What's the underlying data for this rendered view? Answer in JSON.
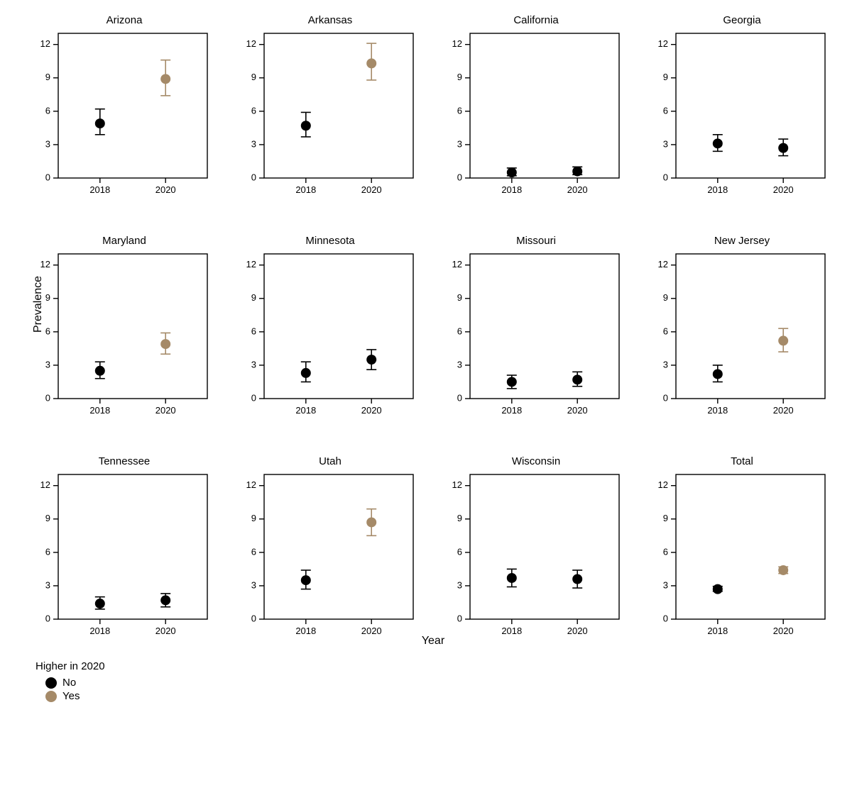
{
  "global": {
    "ylabel": "Prevalence",
    "xlabel": "Year",
    "ylim": [
      0,
      13
    ],
    "yticks": [
      0,
      3,
      6,
      9,
      12
    ],
    "xtick_labels": [
      "2018",
      "2020"
    ],
    "x_positions": [
      0.28,
      0.72
    ],
    "marker_radius": 7,
    "whisker_halfwidth": 7,
    "error_stroke_width": 1.6,
    "axis_stroke_width": 1.4,
    "tick_len": 7,
    "colors": {
      "no": "#000000",
      "yes": "#a58a68",
      "axis": "#000000",
      "bg": "#ffffff"
    },
    "title_fontsize": 15,
    "tick_fontsize": 13,
    "label_fontsize": 16
  },
  "legend": {
    "title": "Higher in 2020",
    "items": [
      {
        "label": "No",
        "color_key": "no"
      },
      {
        "label": "Yes",
        "color_key": "yes"
      }
    ]
  },
  "panels": [
    {
      "title": "Arizona",
      "points": [
        {
          "x": 0,
          "y": 4.9,
          "lo": 3.9,
          "hi": 6.2,
          "color_key": "no"
        },
        {
          "x": 1,
          "y": 8.9,
          "lo": 7.4,
          "hi": 10.6,
          "color_key": "yes"
        }
      ]
    },
    {
      "title": "Arkansas",
      "points": [
        {
          "x": 0,
          "y": 4.7,
          "lo": 3.7,
          "hi": 5.9,
          "color_key": "no"
        },
        {
          "x": 1,
          "y": 10.3,
          "lo": 8.8,
          "hi": 12.1,
          "color_key": "yes"
        }
      ]
    },
    {
      "title": "California",
      "points": [
        {
          "x": 0,
          "y": 0.5,
          "lo": 0.2,
          "hi": 0.9,
          "color_key": "no"
        },
        {
          "x": 1,
          "y": 0.6,
          "lo": 0.3,
          "hi": 1.0,
          "color_key": "no"
        }
      ]
    },
    {
      "title": "Georgia",
      "points": [
        {
          "x": 0,
          "y": 3.1,
          "lo": 2.4,
          "hi": 3.9,
          "color_key": "no"
        },
        {
          "x": 1,
          "y": 2.7,
          "lo": 2.0,
          "hi": 3.5,
          "color_key": "no"
        }
      ]
    },
    {
      "title": "Maryland",
      "points": [
        {
          "x": 0,
          "y": 2.5,
          "lo": 1.8,
          "hi": 3.3,
          "color_key": "no"
        },
        {
          "x": 1,
          "y": 4.9,
          "lo": 4.0,
          "hi": 5.9,
          "color_key": "yes"
        }
      ]
    },
    {
      "title": "Minnesota",
      "points": [
        {
          "x": 0,
          "y": 2.3,
          "lo": 1.5,
          "hi": 3.3,
          "color_key": "no"
        },
        {
          "x": 1,
          "y": 3.5,
          "lo": 2.6,
          "hi": 4.4,
          "color_key": "no"
        }
      ]
    },
    {
      "title": "Missouri",
      "points": [
        {
          "x": 0,
          "y": 1.5,
          "lo": 0.9,
          "hi": 2.1,
          "color_key": "no"
        },
        {
          "x": 1,
          "y": 1.7,
          "lo": 1.1,
          "hi": 2.4,
          "color_key": "no"
        }
      ]
    },
    {
      "title": "New Jersey",
      "points": [
        {
          "x": 0,
          "y": 2.2,
          "lo": 1.5,
          "hi": 3.0,
          "color_key": "no"
        },
        {
          "x": 1,
          "y": 5.2,
          "lo": 4.2,
          "hi": 6.3,
          "color_key": "yes"
        }
      ]
    },
    {
      "title": "Tennessee",
      "points": [
        {
          "x": 0,
          "y": 1.4,
          "lo": 0.9,
          "hi": 2.0,
          "color_key": "no"
        },
        {
          "x": 1,
          "y": 1.7,
          "lo": 1.1,
          "hi": 2.3,
          "color_key": "no"
        }
      ]
    },
    {
      "title": "Utah",
      "points": [
        {
          "x": 0,
          "y": 3.5,
          "lo": 2.7,
          "hi": 4.4,
          "color_key": "no"
        },
        {
          "x": 1,
          "y": 8.7,
          "lo": 7.5,
          "hi": 9.9,
          "color_key": "yes"
        }
      ]
    },
    {
      "title": "Wisconsin",
      "points": [
        {
          "x": 0,
          "y": 3.7,
          "lo": 2.9,
          "hi": 4.5,
          "color_key": "no"
        },
        {
          "x": 1,
          "y": 3.6,
          "lo": 2.8,
          "hi": 4.4,
          "color_key": "no"
        }
      ]
    },
    {
      "title": "Total",
      "points": [
        {
          "x": 0,
          "y": 2.7,
          "lo": 2.5,
          "hi": 2.95,
          "color_key": "no"
        },
        {
          "x": 1,
          "y": 4.4,
          "lo": 4.1,
          "hi": 4.7,
          "color_key": "yes"
        }
      ]
    }
  ]
}
